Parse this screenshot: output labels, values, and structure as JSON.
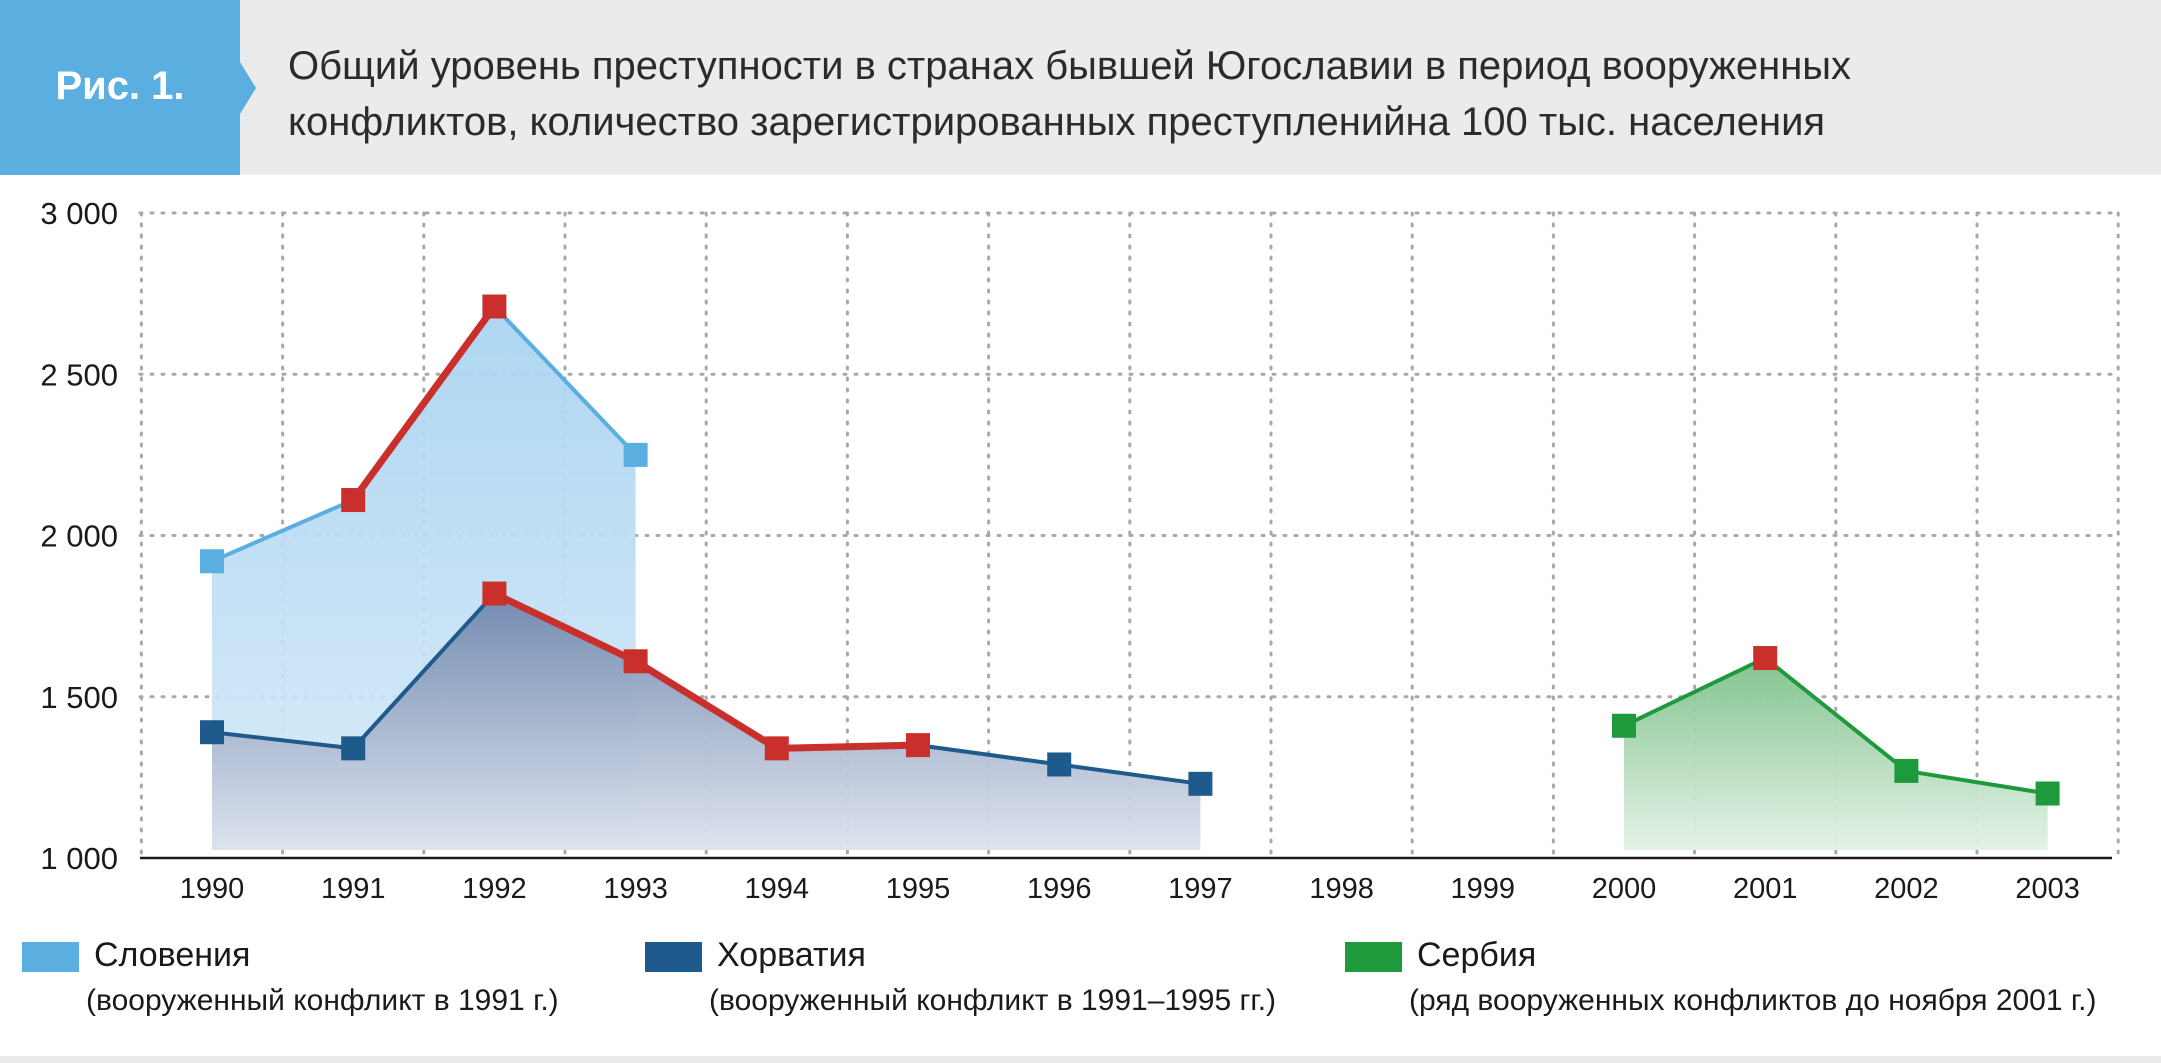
{
  "header": {
    "figure_label": "Рис. 1.",
    "title_line1": "Общий уровень преступности в странах бывшей Югославии в период вооруженных",
    "title_line2": "конфликтов, количество зарегистрированных преступленийна 100 тыс. населения"
  },
  "colors": {
    "slovenia": "#5aaee0",
    "croatia": "#1f5a8c",
    "serbia": "#1e9a3c",
    "highlight": "#c9302c",
    "header_bg": "#ebebeb"
  },
  "legend": [
    {
      "key": "slovenia",
      "name": "Словения",
      "note": "(вооруженный конфликт в 1991 г.)"
    },
    {
      "key": "croatia",
      "name": "Хорватия",
      "note": "(вооруженный конфликт в 1991–1995 гг.)"
    },
    {
      "key": "serbia",
      "name": "Сербия",
      "note": "(ряд вооруженных конфликтов до ноября 2001 г.)"
    }
  ],
  "chart_data": {
    "type": "area",
    "categories": [
      "1990",
      "1991",
      "1992",
      "1993",
      "1994",
      "1995",
      "1996",
      "1997",
      "1998",
      "1999",
      "2000",
      "2001",
      "2002",
      "2003"
    ],
    "y_ticks": [
      "1 000",
      "1 500",
      "2 000",
      "2 500",
      "3 000"
    ],
    "ylim": [
      1000,
      3000
    ],
    "grid": true,
    "legend_position": "bottom",
    "series": [
      {
        "name": "Словения",
        "key": "slovenia",
        "values": [
          1920,
          2110,
          2710,
          2250,
          null,
          null,
          null,
          null,
          null,
          null,
          null,
          null,
          null,
          null
        ]
      },
      {
        "name": "Хорватия",
        "key": "croatia",
        "values": [
          1390,
          1340,
          1820,
          1610,
          1340,
          1350,
          1290,
          1230,
          null,
          null,
          null,
          null,
          null,
          null
        ]
      },
      {
        "name": "Сербия",
        "key": "serbia",
        "values": [
          null,
          null,
          null,
          null,
          null,
          null,
          null,
          null,
          null,
          null,
          1410,
          1620,
          1270,
          1200
        ]
      }
    ],
    "annotations": "Red segments and markers highlight conflict-period values: Slovenia 1991–1992, Croatia 1992–1995, Serbia 2001"
  }
}
